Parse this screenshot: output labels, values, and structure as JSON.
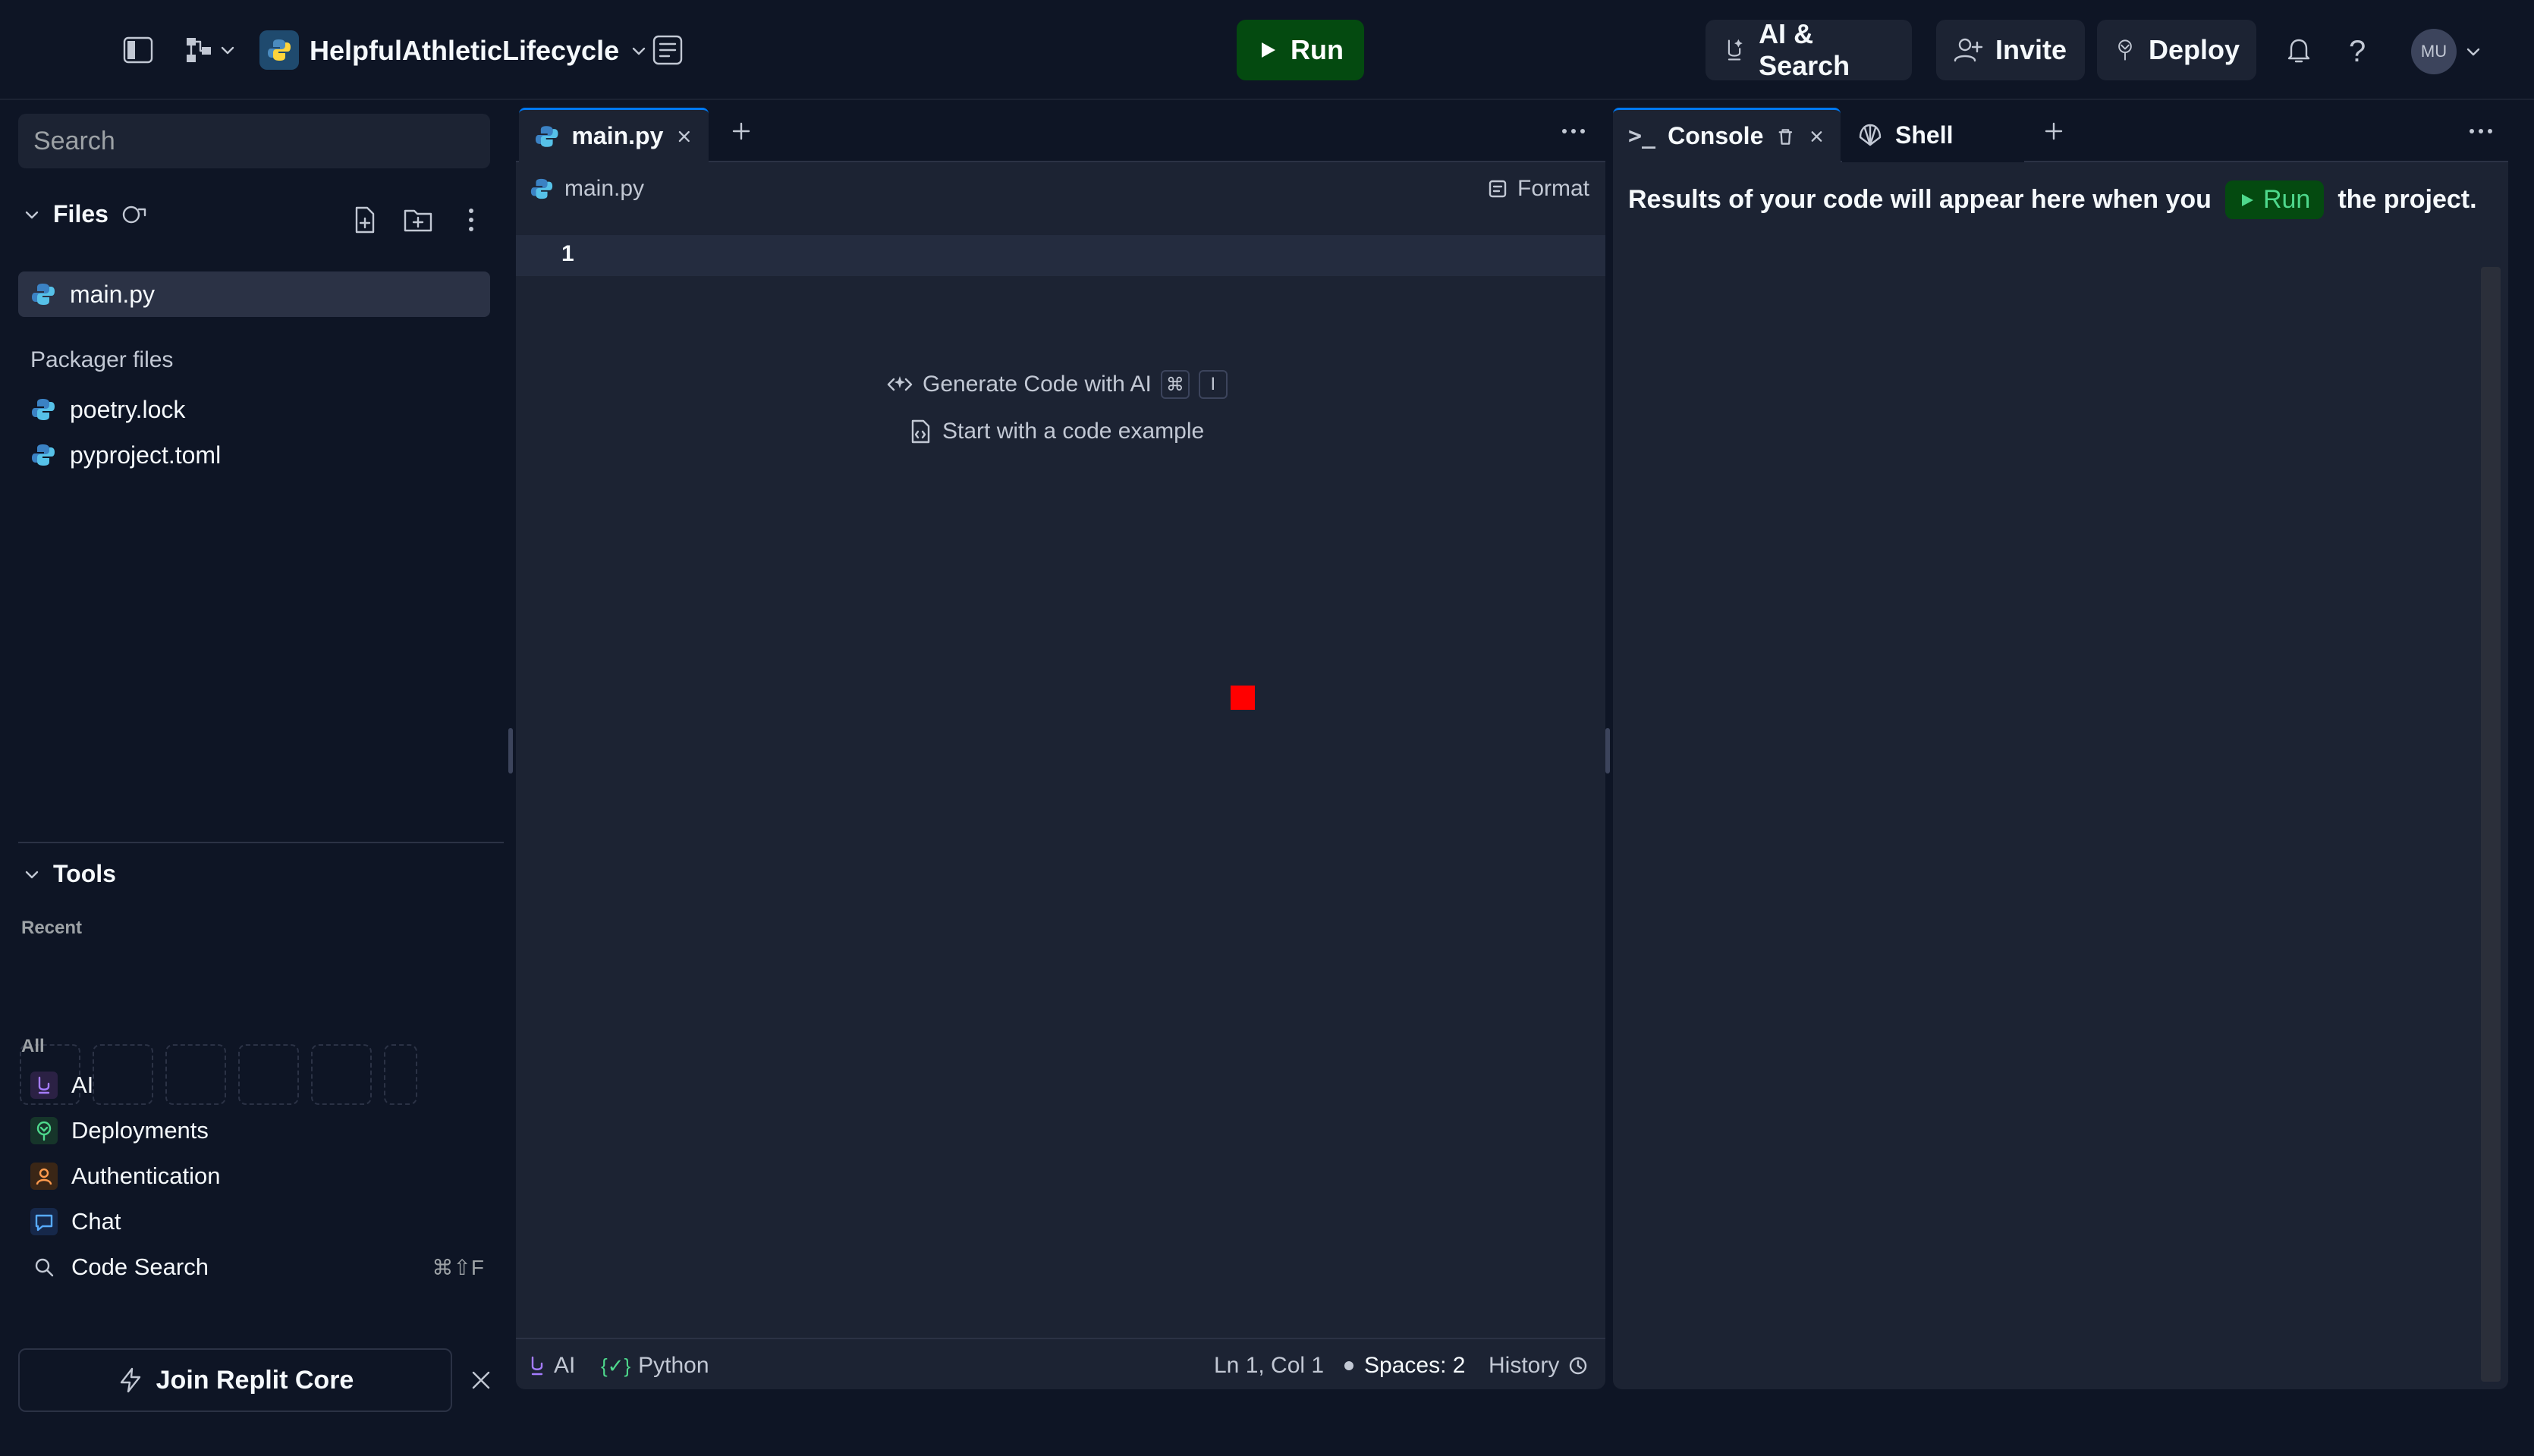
{
  "topbar": {
    "project_name": "HelpfulAthleticLifecycle",
    "run_label": "Run",
    "ai_search_label": "AI & Search",
    "invite_label": "Invite",
    "deploy_label": "Deploy",
    "help_label": "?",
    "avatar_initials": "MU"
  },
  "sidebar": {
    "search_placeholder": "Search",
    "files_title": "Files",
    "files": [
      {
        "name": "main.py"
      }
    ],
    "packager_title": "Packager files",
    "packager_files": [
      {
        "name": "poetry.lock"
      },
      {
        "name": "pyproject.toml"
      }
    ],
    "tools_title": "Tools",
    "recent_label": "Recent",
    "all_label": "All",
    "tools": [
      {
        "label": "AI",
        "icon": "ai-icon"
      },
      {
        "label": "Deployments",
        "icon": "deploy-icon"
      },
      {
        "label": "Authentication",
        "icon": "user-icon"
      },
      {
        "label": "Chat",
        "icon": "chat-icon"
      },
      {
        "label": "Code Search",
        "icon": "search-icon",
        "shortcut": "⌘⇧F"
      }
    ],
    "join_label": "Join Replit Core"
  },
  "editor": {
    "tab_label": "main.py",
    "breadcrumb": "main.py",
    "format_label": "Format",
    "line_number": "1",
    "hint_generate": "Generate Code with AI",
    "hint_shortcut_1": "⌘",
    "hint_shortcut_2": "I",
    "hint_example": "Start with a code example",
    "status": {
      "ai": "AI",
      "language_icon": "{✓}",
      "language": "Python",
      "position": "Ln 1, Col 1",
      "spaces": "Spaces: 2",
      "history": "History"
    }
  },
  "console": {
    "console_tab": "Console",
    "shell_tab": "Shell",
    "message_before": "Results of your code will appear here when you",
    "run_label": "Run",
    "message_after": "the project."
  },
  "colors": {
    "background": "#0e1525",
    "panel": "#1c2333",
    "run_green": "#044a10",
    "accent_blue": "#0079f2"
  }
}
